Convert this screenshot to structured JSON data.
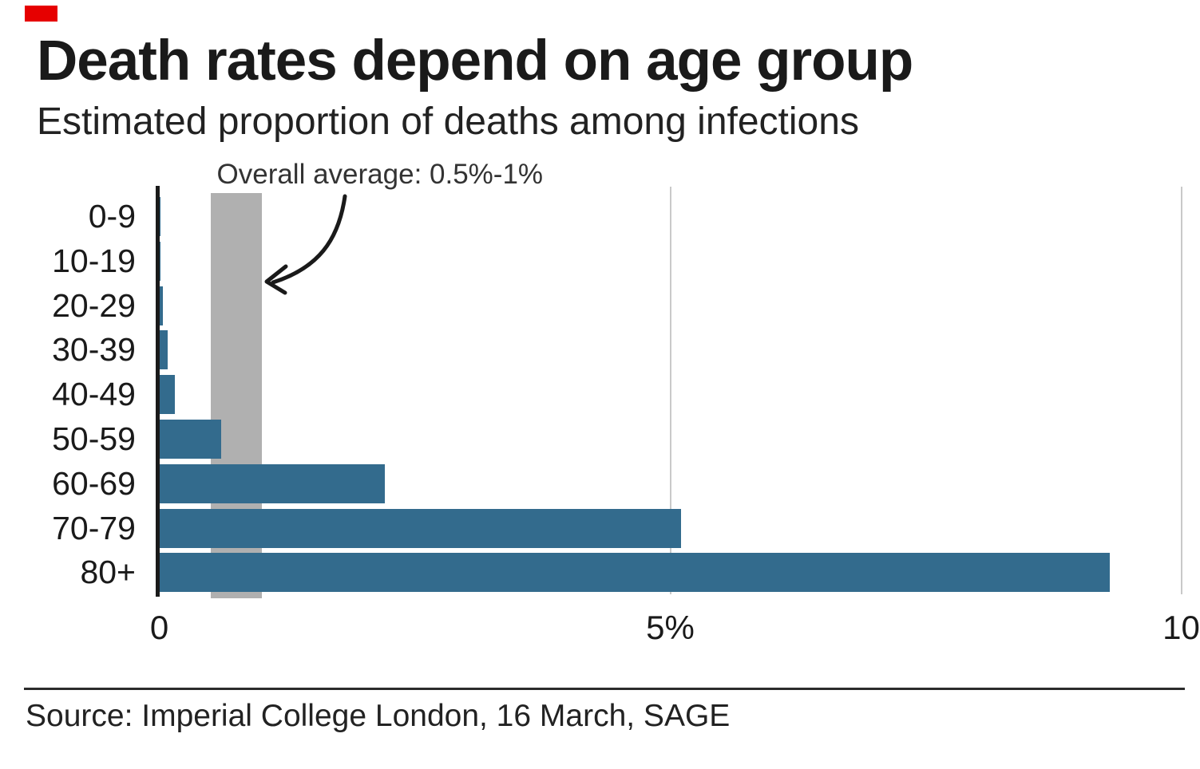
{
  "header": {
    "title": "Death rates depend on age group",
    "subtitle": "Estimated proportion of deaths among infections"
  },
  "chart_data": {
    "type": "bar",
    "orientation": "horizontal",
    "categories": [
      "0-9",
      "10-19",
      "20-29",
      "30-39",
      "40-49",
      "50-59",
      "60-69",
      "70-79",
      "80+"
    ],
    "values": [
      0.002,
      0.006,
      0.03,
      0.08,
      0.15,
      0.6,
      2.2,
      5.1,
      9.3
    ],
    "unit": "%",
    "xlim": [
      0,
      10
    ],
    "x_ticks": [
      {
        "value": 0,
        "label": "0"
      },
      {
        "value": 5,
        "label": "5%"
      },
      {
        "value": 10,
        "label": "10"
      }
    ],
    "grid": true,
    "legend": "none",
    "annotation": {
      "label": "Overall average: 0.5%-1%",
      "band_from": 0.5,
      "band_to": 1.0
    },
    "colors": {
      "bar": "#336b8d",
      "band": "#b0b0b0",
      "gridline": "#c9c9c9",
      "axis": "#1a1a1a"
    }
  },
  "badge": {
    "color": "#e60000"
  },
  "footer": {
    "source": "Source: Imperial College London, 16 March, SAGE"
  }
}
